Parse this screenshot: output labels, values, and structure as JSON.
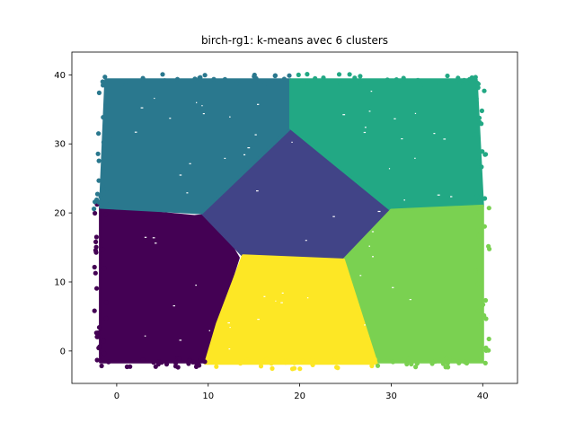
{
  "chart_data": {
    "type": "scatter",
    "title": "birch-rg1: k-means avec 6 clusters",
    "xlabel": "",
    "ylabel": "",
    "xlim": [
      -4.9,
      43.8
    ],
    "ylim": [
      -4.7,
      43.3
    ],
    "xticks": [
      0,
      10,
      20,
      30,
      40
    ],
    "yticks": [
      0,
      10,
      20,
      30,
      40
    ],
    "grid": false,
    "clusters": [
      {
        "label": 0,
        "color": "#440154",
        "polygon": [
          [
            -1.8,
            -1.6
          ],
          [
            9.5,
            -1.6
          ],
          [
            11.0,
            4.0
          ],
          [
            13.3,
            13.5
          ],
          [
            10.5,
            19.8
          ],
          [
            8.5,
            19.5
          ],
          [
            -1.8,
            20.8
          ]
        ]
      },
      {
        "label": 1,
        "color": "#414487",
        "polygon": [
          [
            9.3,
            20.0
          ],
          [
            19.0,
            32.3
          ],
          [
            30.0,
            20.4
          ],
          [
            24.8,
            13.2
          ],
          [
            13.8,
            13.8
          ]
        ]
      },
      {
        "label": 2,
        "color": "#2a788e",
        "polygon": [
          [
            -1.8,
            20.8
          ],
          [
            -1.2,
            39.3
          ],
          [
            19.0,
            39.3
          ],
          [
            19.0,
            32.3
          ],
          [
            9.3,
            20.0
          ]
        ]
      },
      {
        "label": 3,
        "color": "#22a884",
        "polygon": [
          [
            19.0,
            39.3
          ],
          [
            39.3,
            39.3
          ],
          [
            40.0,
            21.0
          ],
          [
            30.0,
            20.4
          ],
          [
            19.0,
            32.3
          ]
        ]
      },
      {
        "label": 4,
        "color": "#7ad151",
        "polygon": [
          [
            30.0,
            20.4
          ],
          [
            40.0,
            21.0
          ],
          [
            40.0,
            -1.6
          ],
          [
            28.4,
            -1.6
          ],
          [
            24.8,
            13.2
          ]
        ]
      },
      {
        "label": 5,
        "color": "#fde725",
        "polygon": [
          [
            13.8,
            13.8
          ],
          [
            24.8,
            13.2
          ],
          [
            28.4,
            -1.8
          ],
          [
            9.7,
            -1.8
          ],
          [
            11.0,
            4.0
          ]
        ]
      }
    ]
  }
}
